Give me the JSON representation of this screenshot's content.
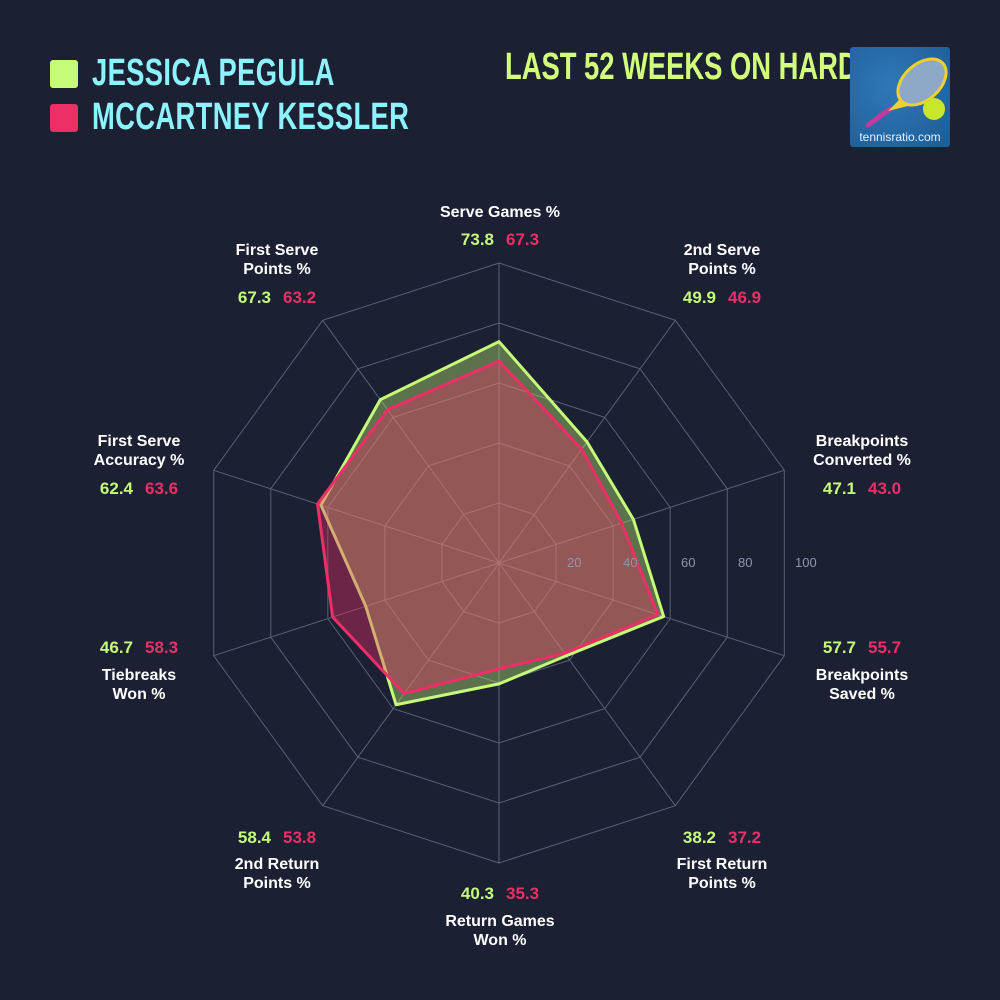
{
  "header": {
    "players": [
      {
        "name": "JESSICA PEGULA",
        "color": "#c5fb78"
      },
      {
        "name": "MCCARTNEY KESSLER",
        "color": "#ec2f67"
      }
    ],
    "subtitle": "LAST 52 WEEKS ON HARD",
    "logo_text": "tennisratio.com"
  },
  "chart_data": {
    "type": "radar",
    "axes": [
      "Serve Games %",
      "2nd Serve Points %",
      "Breakpoints Converted %",
      "Breakpoints Saved %",
      "First Return Points %",
      "Return Games Won %",
      "2nd Return Points %",
      "Tiebreaks Won %",
      "First Serve Accuracy %",
      "First Serve Points %"
    ],
    "axis_labels": [
      [
        "Serve Games %"
      ],
      [
        "2nd Serve",
        "Points %"
      ],
      [
        "Breakpoints",
        "Converted %"
      ],
      [
        "Breakpoints",
        "Saved %"
      ],
      [
        "First Return",
        "Points %"
      ],
      [
        "Return Games",
        "Won %"
      ],
      [
        "2nd Return",
        "Points %"
      ],
      [
        "Tiebreaks",
        "Won %"
      ],
      [
        "First Serve",
        "Accuracy %"
      ],
      [
        "First Serve",
        "Points %"
      ]
    ],
    "series": [
      {
        "name": "JESSICA PEGULA",
        "color": "#c5fb78",
        "values": [
          73.8,
          49.9,
          47.1,
          57.7,
          38.2,
          40.3,
          58.4,
          46.7,
          62.4,
          67.3
        ]
      },
      {
        "name": "MCCARTNEY KESSLER",
        "color": "#ec2f67",
        "values": [
          67.3,
          46.9,
          43.0,
          55.7,
          37.2,
          35.3,
          53.8,
          58.3,
          63.6,
          63.2
        ]
      }
    ],
    "rlim": [
      0,
      100
    ],
    "ticks": [
      "20",
      "40",
      "60",
      "80",
      "100"
    ],
    "grid": true
  }
}
